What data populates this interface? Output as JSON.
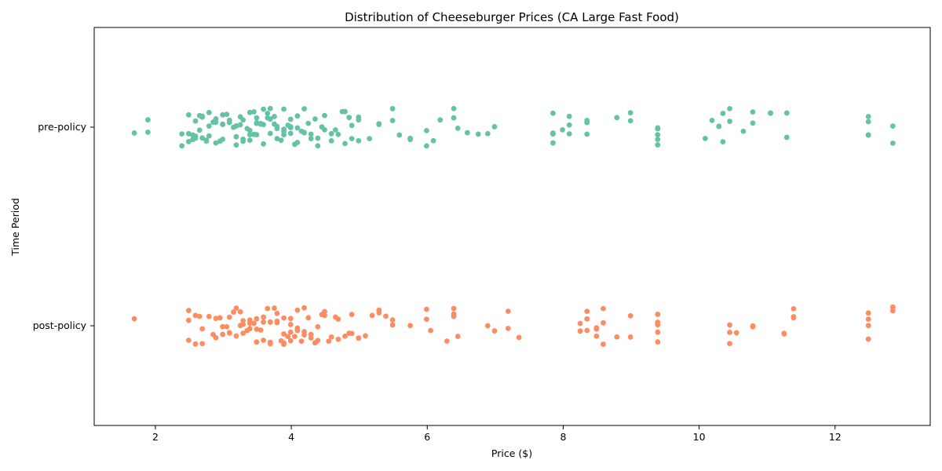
{
  "chart_data": {
    "type": "scatter",
    "subtype": "strip",
    "title": "Distribution of Cheeseburger Prices (CA Large Fast Food)",
    "xlabel": "Price ($)",
    "ylabel": "Time Period",
    "xlim": [
      1.1,
      13.4
    ],
    "xticks": [
      2,
      4,
      6,
      8,
      10,
      12
    ],
    "categories": [
      "pre-policy",
      "post-policy"
    ],
    "grid": false,
    "series": [
      {
        "name": "pre-policy",
        "color": "#66c2a5",
        "prices": [
          1.69,
          1.89,
          1.89,
          2.39,
          2.39,
          2.49,
          2.49,
          2.49,
          2.55,
          2.55,
          2.59,
          2.59,
          2.59,
          2.65,
          2.65,
          2.69,
          2.69,
          2.69,
          2.75,
          2.75,
          2.79,
          2.79,
          2.79,
          2.85,
          2.89,
          2.89,
          2.89,
          2.95,
          2.99,
          2.99,
          2.99,
          2.99,
          3.05,
          3.09,
          3.09,
          3.15,
          3.19,
          3.19,
          3.19,
          3.25,
          3.25,
          3.29,
          3.29,
          3.29,
          3.35,
          3.39,
          3.39,
          3.39,
          3.39,
          3.45,
          3.45,
          3.49,
          3.49,
          3.49,
          3.49,
          3.55,
          3.55,
          3.59,
          3.59,
          3.59,
          3.65,
          3.65,
          3.69,
          3.69,
          3.69,
          3.69,
          3.75,
          3.75,
          3.79,
          3.79,
          3.79,
          3.85,
          3.89,
          3.89,
          3.89,
          3.89,
          3.95,
          3.99,
          3.99,
          3.99,
          3.99,
          4.05,
          4.09,
          4.09,
          4.09,
          4.15,
          4.19,
          4.19,
          4.19,
          4.25,
          4.29,
          4.29,
          4.35,
          4.39,
          4.39,
          4.45,
          4.49,
          4.49,
          4.59,
          4.59,
          4.65,
          4.69,
          4.75,
          4.79,
          4.79,
          4.85,
          4.89,
          4.89,
          4.99,
          4.99,
          4.99,
          5.15,
          5.29,
          5.29,
          5.49,
          5.49,
          5.59,
          5.75,
          5.75,
          5.99,
          5.99,
          6.09,
          6.19,
          6.39,
          6.39,
          6.45,
          6.59,
          6.75,
          6.89,
          6.99,
          7.85,
          7.85,
          7.85,
          7.85,
          7.99,
          8.09,
          8.09,
          8.09,
          8.35,
          8.35,
          8.35,
          8.35,
          8.79,
          8.99,
          8.99,
          9.39,
          9.39,
          9.39,
          9.39,
          9.39,
          10.09,
          10.19,
          10.29,
          10.29,
          10.35,
          10.35,
          10.45,
          10.45,
          10.65,
          10.79,
          10.79,
          11.05,
          11.05,
          11.29,
          11.29,
          12.49,
          12.49,
          12.49,
          12.49,
          12.85,
          12.85
        ]
      },
      {
        "name": "post-policy",
        "color": "#fc8d62",
        "prices": [
          1.69,
          2.49,
          2.49,
          2.49,
          2.59,
          2.59,
          2.65,
          2.69,
          2.69,
          2.79,
          2.85,
          2.89,
          2.89,
          2.95,
          2.99,
          2.99,
          3.05,
          3.09,
          3.09,
          3.09,
          3.15,
          3.19,
          3.19,
          3.25,
          3.25,
          3.29,
          3.29,
          3.29,
          3.35,
          3.39,
          3.39,
          3.39,
          3.45,
          3.49,
          3.49,
          3.49,
          3.49,
          3.55,
          3.59,
          3.59,
          3.59,
          3.65,
          3.69,
          3.69,
          3.69,
          3.69,
          3.75,
          3.79,
          3.79,
          3.79,
          3.85,
          3.89,
          3.89,
          3.89,
          3.89,
          3.95,
          3.99,
          3.99,
          3.99,
          3.99,
          4.05,
          4.09,
          4.09,
          4.09,
          4.09,
          4.15,
          4.19,
          4.19,
          4.19,
          4.25,
          4.29,
          4.29,
          4.35,
          4.39,
          4.39,
          4.45,
          4.49,
          4.49,
          4.55,
          4.59,
          4.65,
          4.69,
          4.69,
          4.79,
          4.85,
          4.89,
          4.89,
          4.99,
          4.99,
          5.09,
          5.19,
          5.29,
          5.29,
          5.39,
          5.49,
          5.49,
          5.75,
          5.99,
          5.99,
          6.05,
          6.29,
          6.39,
          6.39,
          6.39,
          6.45,
          6.89,
          6.99,
          7.19,
          7.19,
          7.35,
          8.25,
          8.25,
          8.35,
          8.35,
          8.35,
          8.49,
          8.49,
          8.49,
          8.59,
          8.59,
          8.59,
          8.79,
          8.99,
          8.99,
          9.39,
          9.39,
          9.39,
          9.39,
          9.39,
          10.45,
          10.45,
          10.45,
          10.55,
          10.79,
          10.79,
          11.25,
          11.25,
          11.39,
          11.39,
          11.39,
          12.49,
          12.49,
          12.49,
          12.49,
          12.85,
          12.85
        ]
      }
    ]
  }
}
